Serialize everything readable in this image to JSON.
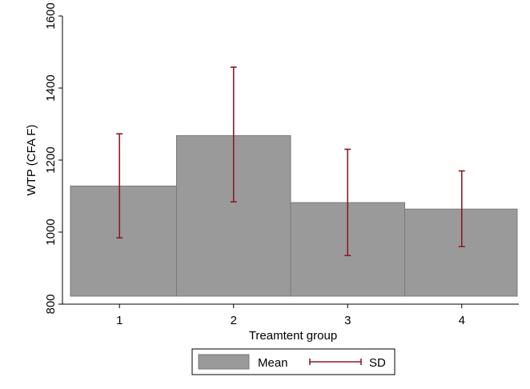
{
  "chart_data": {
    "type": "bar",
    "categories": [
      "1",
      "2",
      "3",
      "4"
    ],
    "series": [
      {
        "name": "Mean",
        "values": [
          1128,
          1268,
          1082,
          1064
        ]
      }
    ],
    "error_bars": {
      "name": "SD",
      "lower": [
        984,
        1084,
        935,
        960
      ],
      "upper": [
        1273,
        1458,
        1230,
        1170
      ]
    },
    "title": "",
    "xlabel": "Treamtent group",
    "ylabel": "WTP (CFA F)",
    "ylim": [
      800,
      1600
    ],
    "xlim": [
      0.5,
      4.5
    ],
    "yticks": [
      "800",
      "1000",
      "1200",
      "1400",
      "1600"
    ],
    "xticks": [
      "1",
      "2",
      "3",
      "4"
    ],
    "grid": false,
    "legend": {
      "placement": "bottom",
      "entries": [
        "Mean",
        "SD"
      ]
    },
    "colors": {
      "bar": "#9a9a9a",
      "bar_edge": "#7a7a7a",
      "error": "#8b1a2b"
    }
  }
}
